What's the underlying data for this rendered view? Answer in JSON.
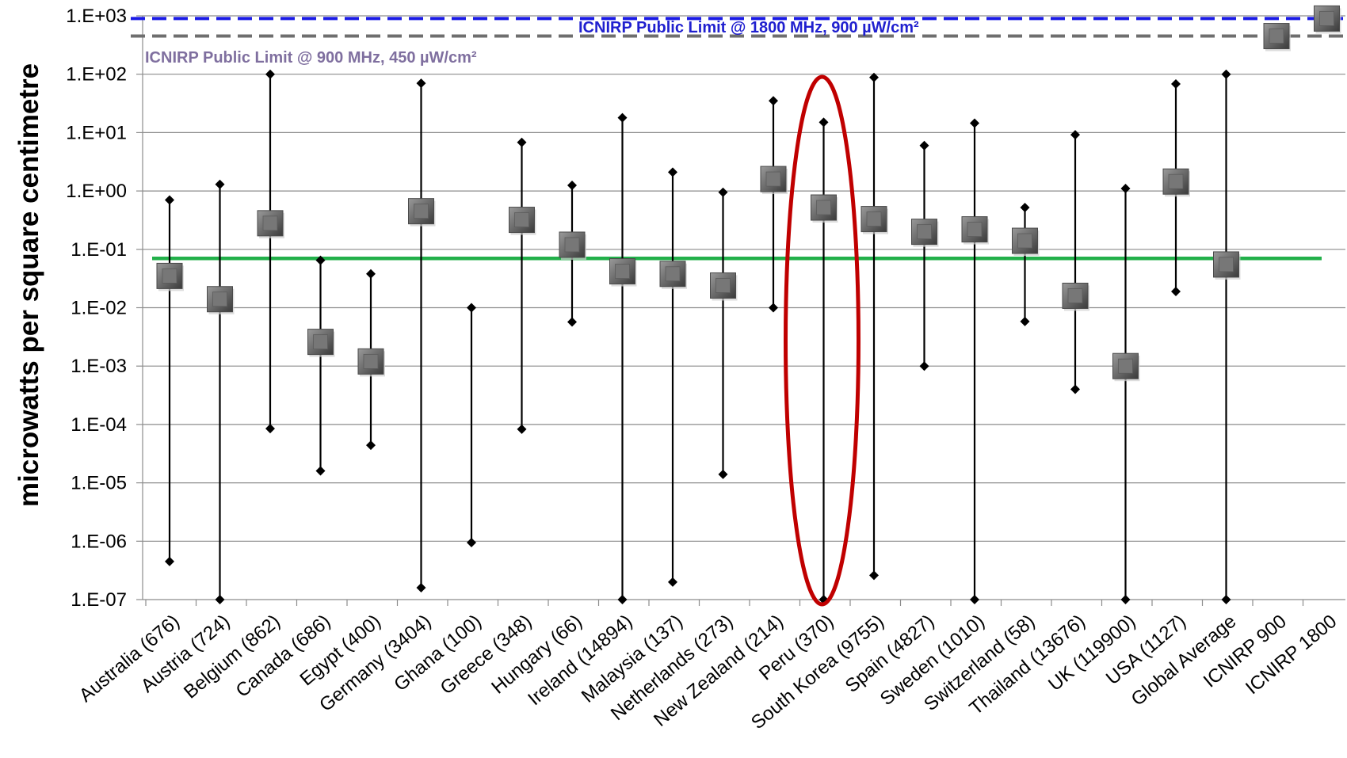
{
  "chart_data": {
    "type": "scatter",
    "ylabel": "microwatts per square centimetre",
    "yscale": "log",
    "ylim": [
      1e-07,
      1000
    ],
    "yticks": [
      {
        "value": 1000.0,
        "label": "1.E+03"
      },
      {
        "value": 100.0,
        "label": "1.E+02"
      },
      {
        "value": 10.0,
        "label": "1.E+01"
      },
      {
        "value": 1.0,
        "label": "1.E+00"
      },
      {
        "value": 0.1,
        "label": "1.E-01"
      },
      {
        "value": 0.01,
        "label": "1.E-02"
      },
      {
        "value": 0.001,
        "label": "1.E-03"
      },
      {
        "value": 0.0001,
        "label": "1.E-04"
      },
      {
        "value": 1e-05,
        "label": "1.E-05"
      },
      {
        "value": 1e-06,
        "label": "1.E-06"
      },
      {
        "value": 1e-07,
        "label": "1.E-07"
      }
    ],
    "grid": true,
    "categories": [
      "Australia (676)",
      "Austria (724)",
      "Belgium (862)",
      "Canada (686)",
      "Egypt (400)",
      "Germany (3404)",
      "Ghana (100)",
      "Greece (348)",
      "Hungary (66)",
      "Ireland (14894)",
      "Malaysia (137)",
      "Netherlands (273)",
      "New Zealand (214)",
      "Peru (370)",
      "South Korea (9755)",
      "Spain (4827)",
      "Sweden (1010)",
      "Switzerland (58)",
      "Thailand (13676)",
      "UK (119900)",
      "USA (1127)",
      "Global Average",
      "ICNIRP 900",
      "ICNIRP 1800"
    ],
    "mean": [
      0.035,
      0.014,
      0.28,
      0.0026,
      0.0012,
      0.45,
      null,
      0.32,
      0.12,
      0.042,
      0.038,
      0.024,
      1.6,
      0.52,
      0.33,
      0.2,
      0.22,
      0.14,
      0.016,
      0.001,
      1.45,
      0.055,
      450,
      900
    ],
    "max": [
      0.7,
      1.3,
      100,
      0.065,
      0.038,
      70,
      0.01,
      6.8,
      1.25,
      18,
      2.1,
      0.95,
      35,
      15,
      88,
      6,
      14.5,
      0.52,
      9.2,
      1.1,
      68,
      100,
      null,
      null
    ],
    "min": [
      4.5e-07,
      1e-07,
      8.5e-05,
      1.6e-05,
      4.4e-05,
      1.6e-07,
      9.5e-07,
      8.3e-05,
      0.0057,
      1e-07,
      2e-07,
      1.4e-05,
      0.01,
      1e-07,
      2.6e-07,
      0.001,
      1e-07,
      0.0058,
      0.0004,
      1e-07,
      0.019,
      1e-07,
      null,
      null
    ],
    "reference_lines": [
      {
        "label": "ICNIRP Public Limit @ 1800 MHz, 900 µW/cm²",
        "value": 900,
        "color": "#1a1ae6",
        "style": "dashed"
      },
      {
        "label": "ICNIRP Public Limit @ 900 MHz, 450 µW/cm²",
        "value": 450,
        "color": "#6e6e6e",
        "style": "dashed"
      },
      {
        "label": "",
        "value": 0.07,
        "color": "#22b04a",
        "style": "solid"
      }
    ],
    "highlight": {
      "category": "Peru (370)",
      "shape": "ellipse",
      "color": "#c00000"
    }
  }
}
